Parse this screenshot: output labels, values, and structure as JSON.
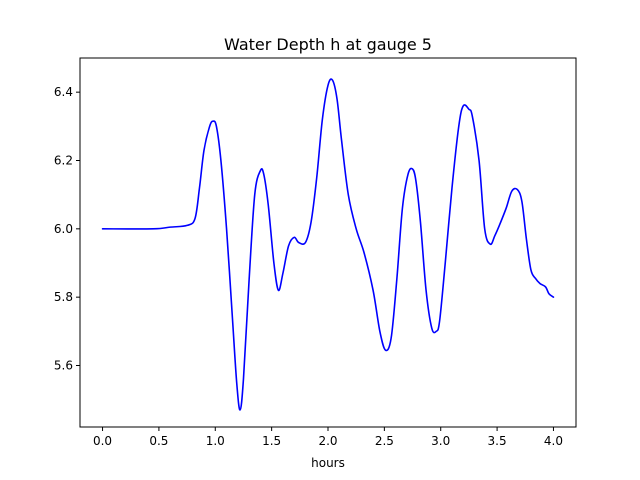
{
  "chart_data": {
    "type": "line",
    "title": "Water Depth h at gauge 5",
    "xlabel": "hours",
    "ylabel": "",
    "xlim": [
      -0.2,
      4.2
    ],
    "ylim": [
      5.42,
      6.5
    ],
    "xticks": [
      0.0,
      0.5,
      1.0,
      1.5,
      2.0,
      2.5,
      3.0,
      3.5,
      4.0
    ],
    "xtick_labels": [
      "0.0",
      "0.5",
      "1.0",
      "1.5",
      "2.0",
      "2.5",
      "3.0",
      "3.5",
      "4.0"
    ],
    "yticks": [
      5.6,
      5.8,
      6.0,
      6.2,
      6.4
    ],
    "ytick_labels": [
      "5.6",
      "5.8",
      "6.0",
      "6.2",
      "6.4"
    ],
    "grid": false,
    "series": [
      {
        "color": "#0000ff",
        "x": [
          0.0,
          0.45,
          0.6,
          0.75,
          0.82,
          0.86,
          0.9,
          0.95,
          0.98,
          1.01,
          1.05,
          1.1,
          1.15,
          1.19,
          1.22,
          1.25,
          1.3,
          1.35,
          1.4,
          1.43,
          1.47,
          1.52,
          1.56,
          1.6,
          1.65,
          1.7,
          1.74,
          1.8,
          1.85,
          1.9,
          1.95,
          2.0,
          2.04,
          2.08,
          2.12,
          2.18,
          2.25,
          2.32,
          2.4,
          2.46,
          2.51,
          2.56,
          2.61,
          2.66,
          2.71,
          2.75,
          2.78,
          2.82,
          2.87,
          2.92,
          2.96,
          2.99,
          3.04,
          3.1,
          3.16,
          3.2,
          3.25,
          3.28,
          3.34,
          3.39,
          3.44,
          3.48,
          3.52,
          3.58,
          3.63,
          3.68,
          3.72,
          3.76,
          3.8,
          3.84,
          3.88,
          3.93,
          3.96,
          4.0
        ],
        "y": [
          6.0,
          6.0,
          6.005,
          6.01,
          6.03,
          6.12,
          6.23,
          6.3,
          6.315,
          6.3,
          6.2,
          6.0,
          5.75,
          5.55,
          5.47,
          5.56,
          5.85,
          6.1,
          6.17,
          6.16,
          6.07,
          5.9,
          5.82,
          5.87,
          5.95,
          5.975,
          5.96,
          5.96,
          6.02,
          6.15,
          6.32,
          6.42,
          6.435,
          6.38,
          6.26,
          6.1,
          6.0,
          5.93,
          5.82,
          5.7,
          5.645,
          5.68,
          5.85,
          6.06,
          6.16,
          6.175,
          6.14,
          6.02,
          5.82,
          5.71,
          5.7,
          5.73,
          5.9,
          6.12,
          6.3,
          6.36,
          6.35,
          6.33,
          6.2,
          6.0,
          5.955,
          5.98,
          6.01,
          6.06,
          6.11,
          6.115,
          6.08,
          5.97,
          5.88,
          5.855,
          5.84,
          5.83,
          5.81,
          5.8
        ]
      }
    ]
  }
}
